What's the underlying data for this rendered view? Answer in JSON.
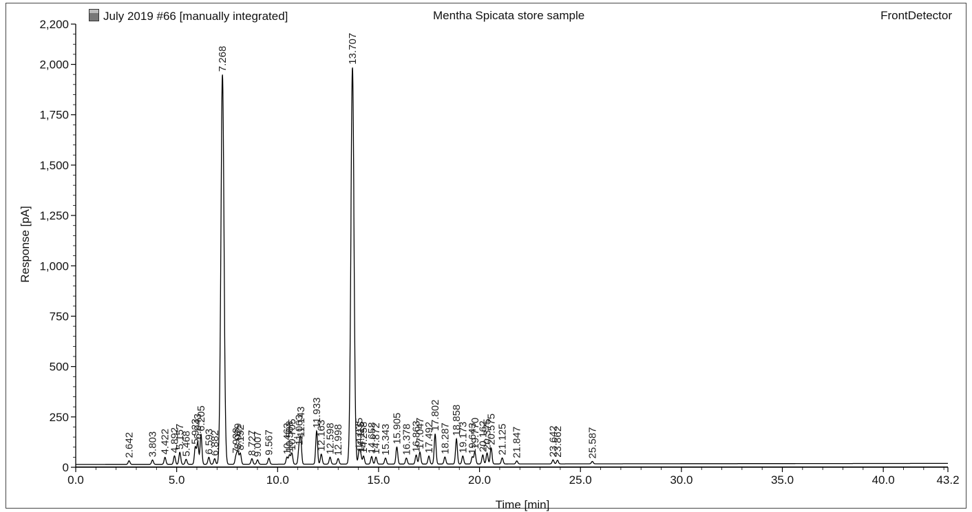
{
  "header": {
    "left_title": "July 2019 #66 [manually integrated]",
    "center_title": "Mentha Spicata store sample",
    "right_title": "FrontDetector"
  },
  "icons": {
    "file": "file-icon"
  },
  "chart_data": {
    "type": "line",
    "xlabel": "Time [min]",
    "ylabel": "Response [pA]",
    "xlim": [
      0.0,
      43.2
    ],
    "ylim": [
      0,
      2200
    ],
    "x_ticks": [
      "0.0",
      "5.0",
      "10.0",
      "15.0",
      "20.0",
      "25.0",
      "30.0",
      "35.0",
      "40.0",
      "43.2"
    ],
    "y_ticks": [
      "0",
      "250",
      "500",
      "750",
      "1,000",
      "1,250",
      "1,500",
      "1,750",
      "2,000",
      "2,200"
    ],
    "baseline": 14,
    "line_color": "#000000",
    "peaks": [
      {
        "rt": "2.642",
        "t": 2.642,
        "h": 18
      },
      {
        "rt": "3.803",
        "t": 3.803,
        "h": 22
      },
      {
        "rt": "4.422",
        "t": 4.422,
        "h": 35
      },
      {
        "rt": "4.892",
        "t": 4.892,
        "h": 42
      },
      {
        "rt": "5.157",
        "t": 5.157,
        "h": 60
      },
      {
        "rt": "5.468",
        "t": 5.468,
        "h": 25
      },
      {
        "rt": "5.923",
        "t": 5.923,
        "h": 85
      },
      {
        "rt": "6.043",
        "t": 6.043,
        "h": 110
      },
      {
        "rt": "6.205",
        "t": 6.205,
        "h": 150
      },
      {
        "rt": "6.593",
        "t": 6.593,
        "h": 35
      },
      {
        "rt": "6.882",
        "t": 6.882,
        "h": 28
      },
      {
        "rt": "7.268",
        "t": 7.268,
        "h": 1935
      },
      {
        "rt": "7.938",
        "t": 7.938,
        "h": 40
      },
      {
        "rt": "8.029",
        "t": 8.029,
        "h": 62
      },
      {
        "rt": "8.152",
        "t": 8.152,
        "h": 55
      },
      {
        "rt": "8.727",
        "t": 8.727,
        "h": 28
      },
      {
        "rt": "9.007",
        "t": 9.007,
        "h": 22
      },
      {
        "rt": "9.567",
        "t": 9.567,
        "h": 30
      },
      {
        "rt": "10.463",
        "t": 10.463,
        "h": 35
      },
      {
        "rt": "10.588",
        "t": 10.588,
        "h": 45
      },
      {
        "rt": "10.705",
        "t": 10.705,
        "h": 55
      },
      {
        "rt": "11.063",
        "t": 11.063,
        "h": 80
      },
      {
        "rt": "11.143",
        "t": 11.143,
        "h": 120
      },
      {
        "rt": "11.933",
        "t": 11.933,
        "h": 165
      },
      {
        "rt": "12.163",
        "t": 12.163,
        "h": 50
      },
      {
        "rt": "12.598",
        "t": 12.598,
        "h": 35
      },
      {
        "rt": "12.998",
        "t": 12.998,
        "h": 28
      },
      {
        "rt": "13.707",
        "t": 13.707,
        "h": 1970
      },
      {
        "rt": "14.035",
        "t": 14.035,
        "h": 60
      },
      {
        "rt": "14.115",
        "t": 14.115,
        "h": 45
      },
      {
        "rt": "14.258",
        "t": 14.258,
        "h": 40
      },
      {
        "rt": "14.658",
        "t": 14.658,
        "h": 38
      },
      {
        "rt": "14.872",
        "t": 14.872,
        "h": 35
      },
      {
        "rt": "15.343",
        "t": 15.343,
        "h": 30
      },
      {
        "rt": "15.905",
        "t": 15.905,
        "h": 85
      },
      {
        "rt": "16.378",
        "t": 16.378,
        "h": 30
      },
      {
        "rt": "16.863",
        "t": 16.863,
        "h": 45
      },
      {
        "rt": "17.047",
        "t": 17.047,
        "h": 60
      },
      {
        "rt": "17.492",
        "t": 17.492,
        "h": 40
      },
      {
        "rt": "17.802",
        "t": 17.802,
        "h": 150
      },
      {
        "rt": "18.287",
        "t": 18.287,
        "h": 35
      },
      {
        "rt": "18.858",
        "t": 18.858,
        "h": 125
      },
      {
        "rt": "19.173",
        "t": 19.173,
        "h": 40
      },
      {
        "rt": "19.643",
        "t": 19.643,
        "h": 35
      },
      {
        "rt": "19.770",
        "t": 19.77,
        "h": 60
      },
      {
        "rt": "20.162",
        "t": 20.162,
        "h": 45
      },
      {
        "rt": "20.375",
        "t": 20.375,
        "h": 55
      },
      {
        "rt": "20.575",
        "t": 20.575,
        "h": 80
      },
      {
        "rt": "21.125",
        "t": 21.125,
        "h": 30
      },
      {
        "rt": "21.847",
        "t": 21.847,
        "h": 15
      },
      {
        "rt": "23.642",
        "t": 23.642,
        "h": 20
      },
      {
        "rt": "23.862",
        "t": 23.862,
        "h": 18
      },
      {
        "rt": "25.587",
        "t": 25.587,
        "h": 12
      }
    ]
  }
}
